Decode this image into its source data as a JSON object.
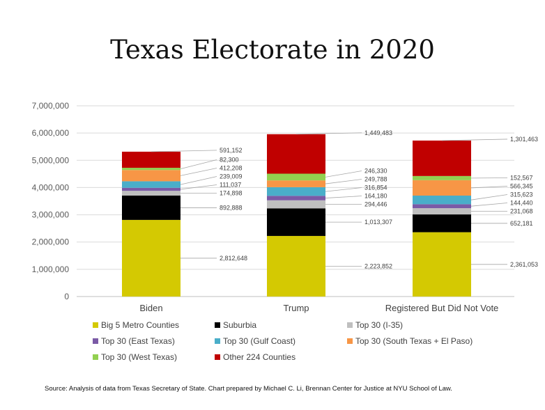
{
  "chart_data": {
    "type": "bar",
    "stacked": true,
    "title": "Texas Electorate in 2020",
    "categories": [
      "Biden",
      "Trump",
      "Registered But Did Not Vote"
    ],
    "y_ticks": [
      "0",
      "1,000,000",
      "2,000,000",
      "3,000,000",
      "4,000,000",
      "5,000,000",
      "6,000,000",
      "7,000,000"
    ],
    "ylim": [
      0,
      7000000
    ],
    "grid": true,
    "legend_position": "bottom",
    "series": [
      {
        "name": "Big 5 Metro Counties",
        "color": "#d4c902",
        "values": [
          2812648,
          2223852,
          2361053
        ],
        "labels": [
          "2,812,648",
          "2,223,852",
          "2,361,053"
        ]
      },
      {
        "name": "Suburbia",
        "color": "#000000",
        "values": [
          892888,
          1013307,
          652181
        ],
        "labels": [
          "892,888",
          "1,013,307",
          "652,181"
        ]
      },
      {
        "name": "Top 30 (I-35)",
        "color": "#bfbfbf",
        "values": [
          174898,
          294446,
          231068
        ],
        "labels": [
          "174,898",
          "294,446",
          "231,068"
        ]
      },
      {
        "name": "Top 30 (East Texas)",
        "color": "#7b5aa6",
        "values": [
          111037,
          164180,
          144440
        ],
        "labels": [
          "111,037",
          "164,180",
          "144,440"
        ]
      },
      {
        "name": "Top 30 (Gulf Coast)",
        "color": "#4aaec9",
        "values": [
          239009,
          316854,
          315623
        ],
        "labels": [
          "239,009",
          "316,854",
          "315,623"
        ]
      },
      {
        "name": "Top 30 (South Texas + El Paso)",
        "color": "#f79646",
        "values": [
          412208,
          249788,
          566345
        ],
        "labels": [
          "412,208",
          "249,788",
          "566,345"
        ]
      },
      {
        "name": "Top 30 (West Texas)",
        "color": "#92d050",
        "values": [
          82300,
          246330,
          152567
        ],
        "labels": [
          "82,300",
          "246,330",
          "152,567"
        ]
      },
      {
        "name": "Other 224 Counties",
        "color": "#c00000",
        "values": [
          591152,
          1449483,
          1301463
        ],
        "labels": [
          "591,152",
          "1,449,483",
          "1,301,463"
        ]
      }
    ],
    "source": "Source: Analysis of data from Texas Secretary of State. Chart prepared by Michael C. Li, Brennan Center for Justice at NYU School of Law."
  }
}
